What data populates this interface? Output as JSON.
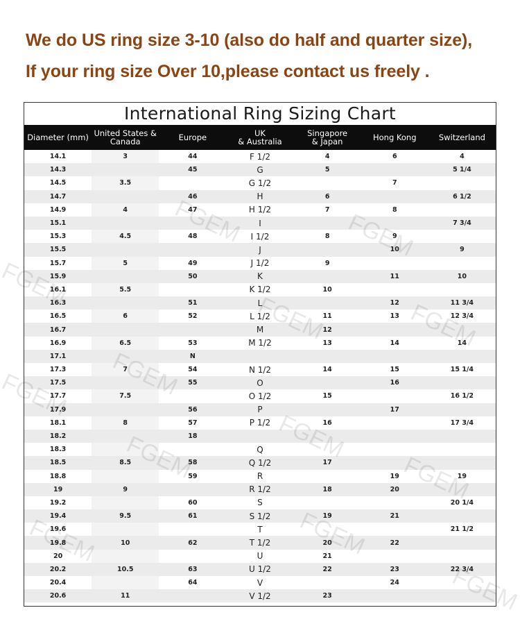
{
  "notice": {
    "line1": "We do US ring size 3-10 (also do half and quarter size),",
    "line2": "If your ring size Over 10,please contact us freely ."
  },
  "colors": {
    "notice_text": "#8a4513",
    "header_bg": "#0d0d0d",
    "stripe": "#ebebeb"
  },
  "chart": {
    "title": "International Ring Sizing Chart",
    "columns": [
      "Diameter (mm)",
      "United States &\nCanada",
      "Europe",
      "UK\n& Australia",
      "Singapore\n& Japan",
      "Hong Kong",
      "Switzerland"
    ],
    "rows": [
      [
        "14.1",
        "3",
        "44",
        "F 1/2",
        "4",
        "6",
        "4"
      ],
      [
        "14.3",
        "",
        "45",
        "G",
        "5",
        "",
        "5 1/4"
      ],
      [
        "14.5",
        "3.5",
        "",
        "G 1/2",
        "",
        "7",
        ""
      ],
      [
        "14.7",
        "",
        "46",
        "H",
        "6",
        "",
        "6 1/2"
      ],
      [
        "14.9",
        "4",
        "47",
        "H 1/2",
        "7",
        "8",
        ""
      ],
      [
        "15.1",
        "",
        "",
        "I",
        "",
        "",
        "7 3/4"
      ],
      [
        "15.3",
        "4.5",
        "48",
        "I 1/2",
        "8",
        "9",
        ""
      ],
      [
        "15.5",
        "",
        "",
        "J",
        "",
        "10",
        "9"
      ],
      [
        "15.7",
        "5",
        "49",
        "J 1/2",
        "9",
        "",
        ""
      ],
      [
        "15.9",
        "",
        "50",
        "K",
        "",
        "11",
        "10"
      ],
      [
        "16.1",
        "5.5",
        "",
        "K 1/2",
        "10",
        "",
        ""
      ],
      [
        "16.3",
        "",
        "51",
        "L",
        "",
        "12",
        "11 3/4"
      ],
      [
        "16.5",
        "6",
        "52",
        "L 1/2",
        "11",
        "13",
        "12 3/4"
      ],
      [
        "16.7",
        "",
        "",
        "M",
        "12",
        "",
        ""
      ],
      [
        "16.9",
        "6.5",
        "53",
        "M 1/2",
        "13",
        "14",
        "14"
      ],
      [
        "17.1",
        "",
        "N",
        "",
        "",
        "",
        ""
      ],
      [
        "17.3",
        "7",
        "54",
        "N 1/2",
        "14",
        "15",
        "15 1/4"
      ],
      [
        "17.5",
        "",
        "55",
        "O",
        "",
        "16",
        ""
      ],
      [
        "17.7",
        "7.5",
        "",
        "O 1/2",
        "15",
        "",
        "16 1/2"
      ],
      [
        "17.9",
        "",
        "56",
        "P",
        "",
        "17",
        ""
      ],
      [
        "18.1",
        "8",
        "57",
        "P 1/2",
        "16",
        "",
        "17 3/4"
      ],
      [
        "18.2",
        "",
        "18",
        "",
        "",
        "",
        ""
      ],
      [
        "18.3",
        "",
        "",
        "Q",
        "",
        "",
        ""
      ],
      [
        "18.5",
        "8.5",
        "58",
        "Q 1/2",
        "17",
        "",
        ""
      ],
      [
        "18.8",
        "",
        "59",
        "R",
        "",
        "19",
        "19"
      ],
      [
        "19",
        "9",
        "",
        "R 1/2",
        "18",
        "20",
        ""
      ],
      [
        "19.2",
        "",
        "60",
        "S",
        "",
        "",
        "20 1/4"
      ],
      [
        "19.4",
        "9.5",
        "61",
        "S 1/2",
        "19",
        "21",
        ""
      ],
      [
        "19.6",
        "",
        "",
        "T",
        "",
        "",
        "21 1/2"
      ],
      [
        "19.8",
        "10",
        "62",
        "T 1/2",
        "20",
        "22",
        ""
      ],
      [
        "20",
        "",
        "",
        "U",
        "21",
        "",
        ""
      ],
      [
        "20.2",
        "10.5",
        "63",
        "U 1/2",
        "22",
        "23",
        "22 3/4"
      ],
      [
        "20.4",
        "",
        "64",
        "V",
        "",
        "24",
        ""
      ],
      [
        "20.6",
        "11",
        "",
        "V 1/2",
        "23",
        "",
        ""
      ]
    ]
  },
  "watermark": "FGEM"
}
